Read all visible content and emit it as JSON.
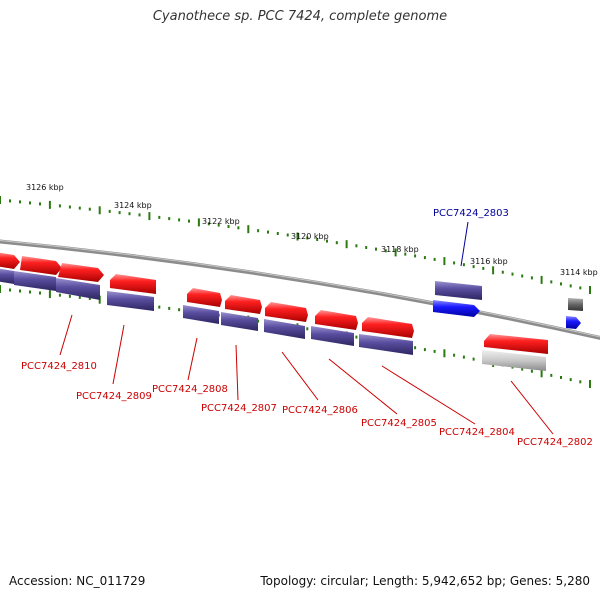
{
  "title": "Cyanothece sp. PCC 7424, complete genome",
  "accession": "Accession: NC_011729",
  "stats": "Topology: circular; Length: 5,942,652 bp; Genes: 5,280",
  "colors": {
    "forward_cds": "#ee1111",
    "reverse_cds": "#554b99",
    "highlight_cds": "#1111dd",
    "backbone": "#777777",
    "ticks": "#2a7a10",
    "label_red": "#cc0000",
    "label_blue": "#000099"
  },
  "scale_labels": [
    "3126 kbp",
    "3124 kbp",
    "3122 kbp",
    "3120 kbp",
    "3118 kbp",
    "3116 kbp",
    "3114 kbp"
  ],
  "gene_labels": [
    "PCC7424_2810",
    "PCC7424_2809",
    "PCC7424_2808",
    "PCC7424_2807",
    "PCC7424_2806",
    "PCC7424_2805",
    "PCC7424_2804",
    "PCC7424_2802",
    "PCC7424_2803"
  ]
}
